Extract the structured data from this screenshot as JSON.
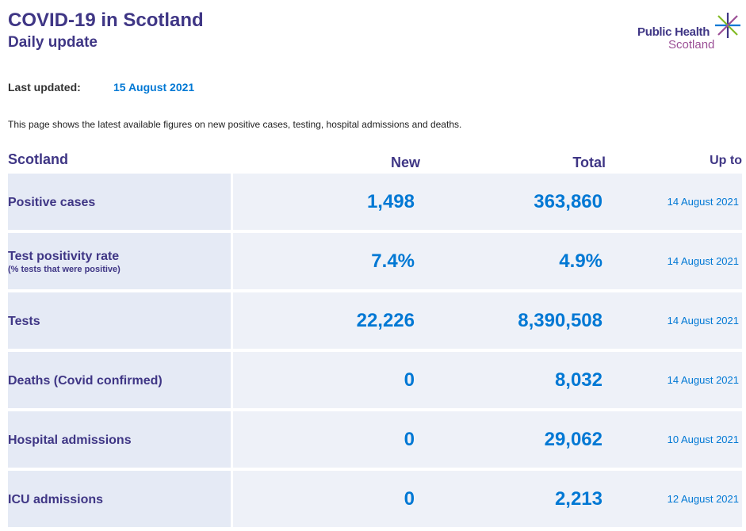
{
  "header": {
    "title": "COVID-19 in Scotland",
    "subtitle": "Daily update"
  },
  "logo": {
    "line1": "Public Health",
    "line2": "Scotland",
    "icon": "star-burst-logo-icon",
    "colors": {
      "navy": "#3f3685",
      "purple": "#9b4f96",
      "green": "#83bb26",
      "blue": "#0078d4"
    }
  },
  "updated": {
    "label": "Last updated:",
    "value": "15 August 2021"
  },
  "intro": "This page shows the latest available figures on new positive cases, testing, hospital admissions and deaths.",
  "table": {
    "headers": {
      "region": "Scotland",
      "new": "New",
      "total": "Total",
      "upto": "Up to"
    },
    "rows": [
      {
        "label": "Positive cases",
        "sublabel": "",
        "new": "1,498",
        "total": "363,860",
        "upto": "14 August 2021"
      },
      {
        "label": "Test positivity rate",
        "sublabel": "(% tests that were positive)",
        "new": "7.4%",
        "total": "4.9%",
        "upto": "14 August 2021"
      },
      {
        "label": "Tests",
        "sublabel": "",
        "new": "22,226",
        "total": "8,390,508",
        "upto": "14 August 2021"
      },
      {
        "label": "Deaths (Covid confirmed)",
        "sublabel": "",
        "new": "0",
        "total": "8,032",
        "upto": "14 August 2021"
      },
      {
        "label": "Hospital admissions",
        "sublabel": "",
        "new": "0",
        "total": "29,062",
        "upto": "10 August 2021"
      },
      {
        "label": "ICU admissions",
        "sublabel": "",
        "new": "0",
        "total": "2,213",
        "upto": "12 August 2021"
      }
    ]
  },
  "colors": {
    "heading": "#3f3685",
    "value": "#0078d4",
    "label_bg": "#e5eaf5",
    "value_bg": "#eef1f8"
  }
}
